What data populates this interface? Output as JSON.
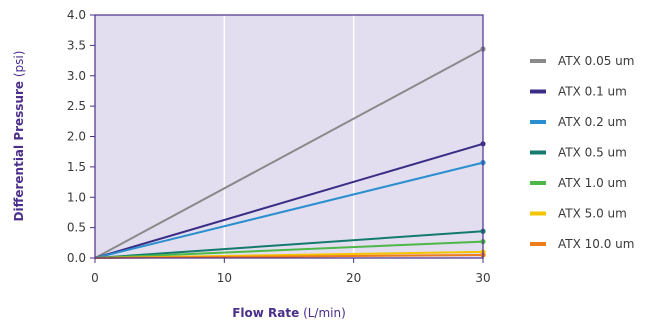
{
  "chart_data": {
    "type": "line",
    "xlabel_bold": "Flow Rate",
    "xlabel_unit": "(L/min)",
    "ylabel_bold": "Differential Pressure",
    "ylabel_unit": "(psi)",
    "xlim": [
      0,
      30
    ],
    "ylim": [
      0,
      4.0
    ],
    "xticks": [
      0,
      10,
      20,
      30
    ],
    "yticks": [
      0.0,
      0.5,
      1.0,
      1.5,
      2.0,
      2.5,
      3.0,
      3.5,
      4.0
    ],
    "ytick_labels": [
      "0.0",
      "0.5",
      "1.0",
      "1.5",
      "2.0",
      "2.5",
      "3.0",
      "3.5",
      "4.0"
    ],
    "grid": true,
    "legend_position": "right",
    "plot_background": "#e2def0",
    "axis_color": "#4b2f8a",
    "series": [
      {
        "name": "ATX 0.05 um",
        "color": "#8a8a8a",
        "x": [
          0,
          30
        ],
        "y": [
          0,
          3.44
        ]
      },
      {
        "name": "ATX 0.1 um",
        "color": "#3a2d85",
        "x": [
          0,
          30
        ],
        "y": [
          0,
          1.88
        ]
      },
      {
        "name": "ATX 0.2 um",
        "color": "#2a8fcf",
        "x": [
          0,
          30
        ],
        "y": [
          0,
          1.57
        ]
      },
      {
        "name": "ATX 0.5 um",
        "color": "#157a6e",
        "x": [
          0,
          30
        ],
        "y": [
          0,
          0.44
        ]
      },
      {
        "name": "ATX 1.0 um",
        "color": "#4db848",
        "x": [
          0,
          30
        ],
        "y": [
          0,
          0.27
        ]
      },
      {
        "name": "ATX 5.0 um",
        "color": "#f5c400",
        "x": [
          0,
          30
        ],
        "y": [
          0,
          0.1
        ]
      },
      {
        "name": "ATX 10.0 um",
        "color": "#ee7d1a",
        "x": [
          0,
          30
        ],
        "y": [
          0,
          0.05
        ]
      }
    ]
  }
}
